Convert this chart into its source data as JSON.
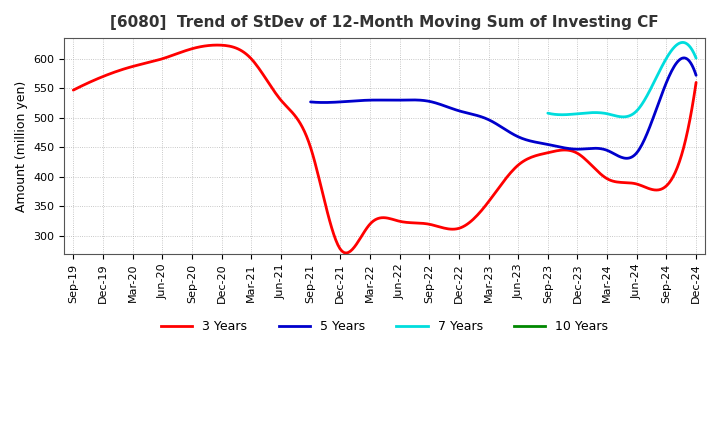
{
  "title": "[6080]  Trend of StDev of 12-Month Moving Sum of Investing CF",
  "ylabel": "Amount (million yen)",
  "background_color": "#ffffff",
  "grid_color": "#999999",
  "x_labels": [
    "Sep-19",
    "Dec-19",
    "Mar-20",
    "Jun-20",
    "Sep-20",
    "Dec-20",
    "Mar-21",
    "Jun-21",
    "Sep-21",
    "Dec-21",
    "Mar-22",
    "Jun-22",
    "Sep-22",
    "Dec-22",
    "Mar-23",
    "Jun-23",
    "Sep-23",
    "Dec-23",
    "Mar-24",
    "Jun-24",
    "Sep-24",
    "Dec-24"
  ],
  "series": {
    "3 Years": {
      "color": "#ff0000",
      "data_x": [
        0,
        1,
        2,
        3,
        4,
        5,
        6,
        7,
        8,
        9,
        10,
        11,
        12,
        13,
        14,
        15,
        16,
        17,
        18,
        19,
        20,
        21
      ],
      "data_y": [
        547,
        570,
        587,
        600,
        617,
        623,
        600,
        530,
        450,
        278,
        320,
        325,
        320,
        313,
        358,
        420,
        441,
        440,
        397,
        388,
        385,
        560
      ]
    },
    "5 Years": {
      "color": "#0000cc",
      "data_x": [
        8,
        9,
        10,
        11,
        12,
        13,
        14,
        15,
        16,
        17,
        18,
        19,
        20,
        21
      ],
      "data_y": [
        527,
        527,
        530,
        530,
        528,
        512,
        497,
        468,
        455,
        447,
        445,
        441,
        560,
        572
      ]
    },
    "7 Years": {
      "color": "#00dddd",
      "data_x": [
        16,
        17,
        18,
        19,
        20,
        21
      ],
      "data_y": [
        508,
        507,
        507,
        512,
        601,
        601
      ]
    },
    "10 Years": {
      "color": "#008800",
      "data_x": [],
      "data_y": []
    }
  },
  "ylim": [
    270,
    635
  ],
  "yticks": [
    300,
    350,
    400,
    450,
    500,
    550,
    600
  ],
  "legend_colors": {
    "3 Years": "#ff0000",
    "5 Years": "#0000cc",
    "7 Years": "#00dddd",
    "10 Years": "#008800"
  },
  "title_fontsize": 11,
  "ylabel_fontsize": 9,
  "tick_fontsize": 8
}
